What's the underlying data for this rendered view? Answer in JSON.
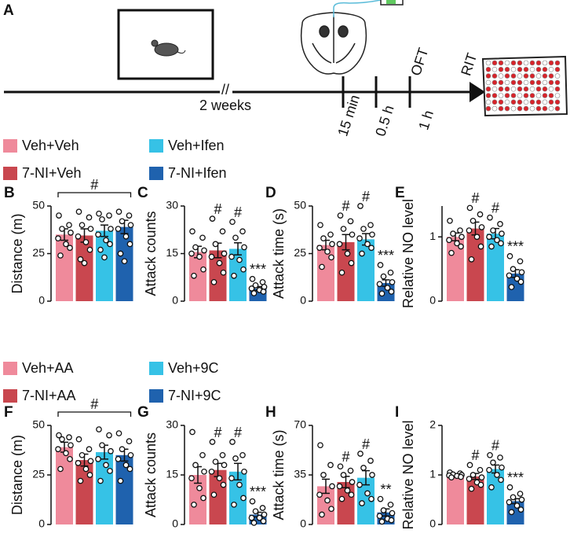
{
  "panel_a": {
    "label": "A",
    "break": "//",
    "duration": "2 weeks",
    "times": [
      "15 min",
      "0.5 h",
      "1 h"
    ],
    "tests": [
      "OFT",
      "RIT"
    ]
  },
  "legends": [
    [
      {
        "name": "Veh+Veh",
        "color": "#ef8a9b"
      },
      {
        "name": "7-NI+Veh",
        "color": "#c9474f"
      },
      {
        "name": "Veh+Ifen",
        "color": "#36c2e6"
      },
      {
        "name": "7-NI+Ifen",
        "color": "#1f62ae"
      }
    ],
    [
      {
        "name": "Veh+AA",
        "color": "#ef8a9b"
      },
      {
        "name": "7-NI+AA",
        "color": "#c9474f"
      },
      {
        "name": "Veh+9C",
        "color": "#36c2e6"
      },
      {
        "name": "7-NI+9C",
        "color": "#1f62ae"
      }
    ]
  ],
  "chart_data": [
    {
      "type": "bar",
      "panel": "B",
      "ylabel": "Distance (m)",
      "ylim": [
        0,
        50
      ],
      "yticks": [
        0,
        25,
        50
      ],
      "colors": [
        "#ef8a9b",
        "#c9474f",
        "#36c2e6",
        "#1f62ae"
      ],
      "values": [
        35,
        34.5,
        37,
        39
      ],
      "errors": [
        3,
        3.5,
        3,
        3.5
      ],
      "points": [
        [
          45,
          40,
          38,
          36,
          33,
          30,
          28,
          24
        ],
        [
          47,
          44,
          40,
          38,
          34,
          31,
          27,
          22,
          20
        ],
        [
          46,
          45,
          43,
          38,
          35,
          32,
          30,
          27,
          23
        ],
        [
          47,
          45,
          42,
          40,
          38,
          34,
          30,
          25,
          21
        ]
      ],
      "annotations": [
        null,
        null,
        null,
        null
      ],
      "bracket_label": "#"
    },
    {
      "type": "bar",
      "panel": "C",
      "ylabel": "Attack counts",
      "ylim": [
        0,
        30
      ],
      "yticks": [
        0,
        15,
        30
      ],
      "colors": [
        "#ef8a9b",
        "#c9474f",
        "#36c2e6",
        "#1f62ae"
      ],
      "values": [
        15.5,
        16,
        16.5,
        4
      ],
      "errors": [
        1.8,
        2.3,
        1.9,
        0.6
      ],
      "points": [
        [
          22,
          20,
          17,
          16,
          15,
          14,
          10,
          8
        ],
        [
          26,
          22,
          18,
          15,
          14,
          12,
          9,
          6
        ],
        [
          25,
          22,
          20,
          17,
          14,
          13,
          10,
          8
        ],
        [
          7,
          6,
          5,
          4.5,
          4,
          3.5,
          3,
          2.5
        ]
      ],
      "annotations": [
        null,
        "#",
        "#",
        "***"
      ]
    },
    {
      "type": "bar",
      "panel": "D",
      "ylabel": "Attack time (s)",
      "ylim": [
        0,
        50
      ],
      "yticks": [
        0,
        25,
        50
      ],
      "colors": [
        "#ef8a9b",
        "#c9474f",
        "#36c2e6",
        "#1f62ae"
      ],
      "values": [
        29.5,
        31,
        32.5,
        9.5
      ],
      "errors": [
        2.5,
        4,
        3,
        1.7
      ],
      "points": [
        [
          40,
          35,
          33,
          30,
          28,
          26,
          23,
          18
        ],
        [
          45,
          42,
          38,
          35,
          30,
          25,
          20,
          15
        ],
        [
          50,
          40,
          38,
          35,
          33,
          30,
          28,
          25
        ],
        [
          19,
          15,
          13,
          10,
          9,
          7,
          5,
          4
        ]
      ],
      "annotations": [
        null,
        "#",
        "#",
        "***"
      ]
    },
    {
      "type": "bar",
      "panel": "E",
      "ylabel": "Relative NO level",
      "ylim": [
        0,
        1.48
      ],
      "yticks": [
        0,
        1
      ],
      "colors": [
        "#ef8a9b",
        "#c9474f",
        "#36c2e6",
        "#1f62ae"
      ],
      "values": [
        1.0,
        1.13,
        1.05,
        0.43
      ],
      "errors": [
        0.06,
        0.1,
        0.08,
        0.06
      ],
      "points": [
        [
          1.25,
          1.1,
          1.05,
          1.0,
          0.95,
          0.9,
          0.85,
          0.75
        ],
        [
          1.45,
          1.35,
          1.25,
          1.15,
          1.1,
          1.0,
          0.85,
          0.65
        ],
        [
          1.3,
          1.2,
          1.1,
          1.05,
          1.0,
          0.95,
          0.9,
          0.85
        ],
        [
          0.7,
          0.62,
          0.5,
          0.45,
          0.4,
          0.35,
          0.3,
          0.22
        ]
      ],
      "annotations": [
        null,
        "#",
        "#",
        "***"
      ]
    },
    {
      "type": "bar",
      "panel": "F",
      "ylabel": "Distance (m)",
      "ylim": [
        0,
        50
      ],
      "yticks": [
        0,
        25,
        50
      ],
      "colors": [
        "#ef8a9b",
        "#c9474f",
        "#36c2e6",
        "#1f62ae"
      ],
      "values": [
        39,
        32.5,
        36.5,
        35
      ],
      "errors": [
        2.5,
        3,
        3.5,
        3
      ],
      "points": [
        [
          45,
          44,
          43,
          40,
          38,
          36,
          33,
          28
        ],
        [
          43,
          38,
          35,
          32,
          31,
          28,
          25,
          22
        ],
        [
          48,
          45,
          40,
          37,
          33,
          30,
          27,
          22
        ],
        [
          46,
          42,
          38,
          35,
          33,
          30,
          28,
          22
        ]
      ],
      "annotations": [
        null,
        null,
        null,
        null
      ],
      "bracket_label": "#"
    },
    {
      "type": "bar",
      "panel": "G",
      "ylabel": "Attack counts",
      "ylim": [
        0,
        30
      ],
      "yticks": [
        0,
        15,
        30
      ],
      "colors": [
        "#ef8a9b",
        "#c9474f",
        "#36c2e6",
        "#1f62ae"
      ],
      "values": [
        15,
        16.5,
        16,
        3
      ],
      "errors": [
        2.5,
        2,
        2.5,
        0.7
      ],
      "points": [
        [
          28,
          21,
          18,
          16,
          14,
          11,
          8,
          6
        ],
        [
          25,
          21,
          19,
          18,
          16,
          14,
          12,
          9
        ],
        [
          25,
          21,
          20,
          16,
          14,
          12,
          8,
          6
        ],
        [
          7,
          5,
          4,
          3,
          2,
          2,
          1,
          0.5
        ]
      ],
      "annotations": [
        null,
        "#",
        "#",
        "***"
      ]
    },
    {
      "type": "bar",
      "panel": "H",
      "ylabel": "Attack time (s)",
      "ylim": [
        0,
        70
      ],
      "yticks": [
        0,
        35,
        70
      ],
      "colors": [
        "#ef8a9b",
        "#c9474f",
        "#36c2e6",
        "#1f62ae"
      ],
      "values": [
        27,
        30,
        33,
        8.5
      ],
      "errors": [
        5,
        4,
        5,
        2.5
      ],
      "points": [
        [
          56,
          42,
          35,
          27,
          21,
          17,
          11,
          7
        ],
        [
          41,
          38,
          35,
          30,
          27,
          24,
          21,
          18
        ],
        [
          50,
          45,
          40,
          35,
          28,
          22,
          18,
          15
        ],
        [
          18,
          14,
          10,
          8,
          6,
          4,
          3,
          2
        ]
      ],
      "annotations": [
        null,
        "#",
        "#",
        "**"
      ]
    },
    {
      "type": "bar",
      "panel": "I",
      "ylabel": "Relative NO level",
      "ylim": [
        0,
        2
      ],
      "yticks": [
        0,
        1,
        2
      ],
      "colors": [
        "#ef8a9b",
        "#c9474f",
        "#36c2e6",
        "#1f62ae"
      ],
      "values": [
        1.0,
        0.97,
        1.12,
        0.47
      ],
      "errors": [
        0.02,
        0.06,
        0.08,
        0.05
      ],
      "points": [
        [
          1.05,
          1.03,
          1.01,
          1.0,
          0.99,
          0.98,
          0.96,
          0.95
        ],
        [
          1.2,
          1.1,
          1.0,
          0.95,
          0.92,
          0.85,
          0.8,
          0.72
        ],
        [
          1.4,
          1.35,
          1.25,
          1.15,
          1.1,
          1.0,
          0.9,
          0.75
        ],
        [
          0.75,
          0.62,
          0.55,
          0.5,
          0.45,
          0.38,
          0.3,
          0.25
        ]
      ],
      "annotations": [
        null,
        "#",
        "#",
        "***"
      ]
    }
  ]
}
